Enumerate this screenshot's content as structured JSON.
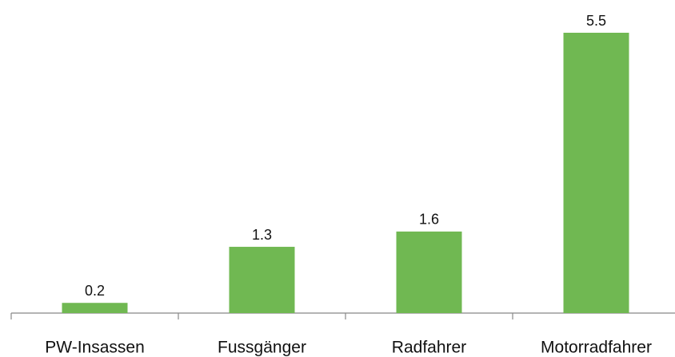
{
  "chart_data": {
    "type": "bar",
    "categories": [
      "PW-Insassen",
      "Fussgänger",
      "Radfahrer",
      "Motorradfahrer"
    ],
    "values": [
      0.2,
      1.3,
      1.6,
      5.5
    ],
    "color": "#70b852",
    "ylim": [
      0,
      5.5
    ]
  }
}
